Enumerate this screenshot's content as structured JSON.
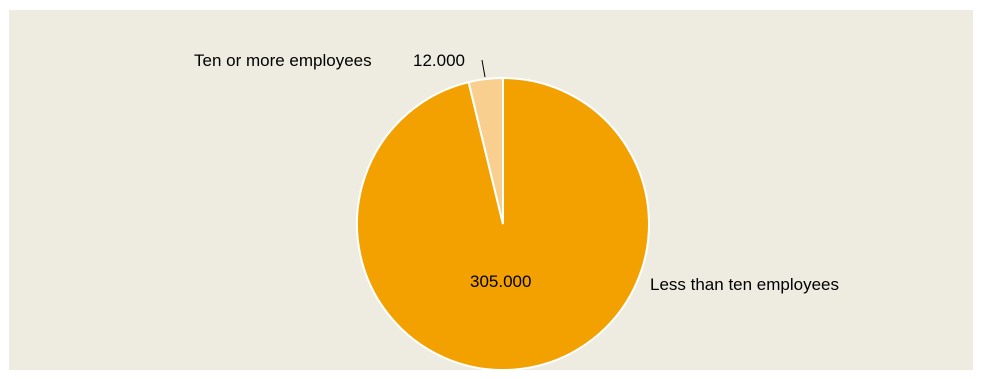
{
  "chart_data": {
    "type": "pie",
    "slices": [
      {
        "label": "Less than ten employees",
        "value": 305000,
        "value_label": "305.000",
        "color": "#f2a100"
      },
      {
        "label": "Ten or more employees",
        "value": 12000,
        "value_label": "12.000",
        "color": "#f9cf8f"
      }
    ],
    "background_color": "#eeece1",
    "slice_border_color": "#ffffff"
  }
}
